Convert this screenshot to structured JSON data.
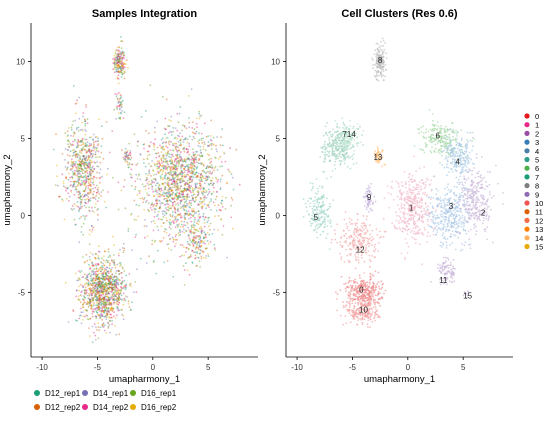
{
  "chart_data": [
    {
      "type": "scatter",
      "title": "Samples Integration",
      "xlabel": "umapharmony_1",
      "ylabel": "umapharmony_2",
      "xlim": [
        -11,
        9.5
      ],
      "ylim": [
        -9.2,
        12.5
      ],
      "xticks": [
        -10,
        -5,
        0,
        5
      ],
      "yticks": [
        -5,
        0,
        5,
        10
      ],
      "grid": false,
      "legend": {
        "placement": "bottom",
        "entries": [
          {
            "label": "D12_rep1",
            "color": "#1b9e77"
          },
          {
            "label": "D14_rep1",
            "color": "#7570b3"
          },
          {
            "label": "D16_rep1",
            "color": "#66a61e"
          },
          {
            "label": "D12_rep2",
            "color": "#d95f02"
          },
          {
            "label": "D14_rep2",
            "color": "#e7298a"
          },
          {
            "label": "D16_rep2",
            "color": "#e6ab02"
          }
        ]
      },
      "regions": [
        {
          "x": -3,
          "y": 10,
          "spread": [
            0.55,
            1.1
          ],
          "n": 170
        },
        {
          "x": -3,
          "y": 7.2,
          "spread": [
            0.4,
            0.8
          ],
          "n": 45
        },
        {
          "x": -6.3,
          "y": 3.0,
          "spread": [
            1.7,
            3.1
          ],
          "n": 650
        },
        {
          "x": -4.5,
          "y": -4.9,
          "spread": [
            2.1,
            2.2
          ],
          "n": 1050
        },
        {
          "x": -2.3,
          "y": 3.8,
          "spread": [
            0.45,
            0.55
          ],
          "n": 45
        },
        {
          "x": 2.5,
          "y": 2.0,
          "spread": [
            3.6,
            3.8
          ],
          "n": 1500
        },
        {
          "x": 4.2,
          "y": -1.8,
          "spread": [
            1.0,
            1.4
          ],
          "n": 120
        }
      ]
    },
    {
      "type": "scatter",
      "title": "Cell Clusters (Res 0.6)",
      "xlabel": "umapharmony_1",
      "ylabel": "umapharmony_2",
      "xlim": [
        -11,
        9.5
      ],
      "ylim": [
        -9.2,
        12.5
      ],
      "xticks": [
        -10,
        -5,
        0,
        5
      ],
      "yticks": [
        -5,
        0,
        5,
        10
      ],
      "grid": false,
      "legend": {
        "placement": "right",
        "entries": [
          {
            "label": "0",
            "color": "#e41a1c"
          },
          {
            "label": "1",
            "color": "#e7298a"
          },
          {
            "label": "2",
            "color": "#984ea3"
          },
          {
            "label": "3",
            "color": "#377eb8"
          },
          {
            "label": "4",
            "color": "#4a7fa8"
          },
          {
            "label": "5",
            "color": "#2e9e8c"
          },
          {
            "label": "6",
            "color": "#4daf4a"
          },
          {
            "label": "7",
            "color": "#1b9e77"
          },
          {
            "label": "8",
            "color": "#7f7f7f"
          },
          {
            "label": "9",
            "color": "#8e6bb3"
          },
          {
            "label": "10",
            "color": "#ef5350"
          },
          {
            "label": "11",
            "color": "#d95f02"
          },
          {
            "label": "12",
            "color": "#f46d43"
          },
          {
            "label": "13",
            "color": "#ff7f00"
          },
          {
            "label": "14",
            "color": "#fdae61"
          },
          {
            "label": "15",
            "color": "#e6ab02"
          }
        ]
      },
      "clusters": [
        {
          "id": "0",
          "x": -4.0,
          "y": -5.0,
          "spread": [
            1.6,
            1.0
          ],
          "n": 330,
          "color": "#f08e8e"
        },
        {
          "id": "10",
          "x": -4.0,
          "y": -6.3,
          "spread": [
            1.5,
            0.8
          ],
          "n": 200,
          "color": "#f3a3a3"
        },
        {
          "id": "12",
          "x": -4.5,
          "y": -1.6,
          "spread": [
            1.7,
            1.5
          ],
          "n": 230,
          "color": "#f2a9a9"
        },
        {
          "id": "1",
          "x": 0.4,
          "y": 0.6,
          "spread": [
            1.8,
            2.2
          ],
          "n": 380,
          "color": "#f1b7c7"
        },
        {
          "id": "3",
          "x": 3.8,
          "y": 0.0,
          "spread": [
            1.9,
            2.0
          ],
          "n": 340,
          "color": "#a9c8e6"
        },
        {
          "id": "2",
          "x": 6.2,
          "y": 0.9,
          "spread": [
            1.5,
            2.2
          ],
          "n": 280,
          "color": "#c9b6d8"
        },
        {
          "id": "6",
          "x": 3.0,
          "y": 5.0,
          "spread": [
            1.8,
            1.1
          ],
          "n": 230,
          "color": "#a8d8a8"
        },
        {
          "id": "4",
          "x": 4.6,
          "y": 3.7,
          "spread": [
            1.3,
            1.2
          ],
          "n": 200,
          "color": "#a8c9e4"
        },
        {
          "id": "7",
          "x": -6.3,
          "y": 4.5,
          "spread": [
            1.4,
            1.3
          ],
          "n": 260,
          "color": "#9fd3bf"
        },
        {
          "id": "14",
          "x": -5.3,
          "y": 5.2,
          "spread": [
            0.9,
            1.0
          ],
          "n": 100,
          "color": "#b7e2cd"
        },
        {
          "id": "5",
          "x": -8.0,
          "y": 0.3,
          "spread": [
            1.0,
            1.6
          ],
          "n": 180,
          "color": "#9fd5c8"
        },
        {
          "id": "8",
          "x": -2.5,
          "y": 10.0,
          "spread": [
            0.55,
            1.1
          ],
          "n": 170,
          "color": "#bdbdbd"
        },
        {
          "id": "13",
          "x": -2.6,
          "y": 3.9,
          "spread": [
            0.45,
            0.5
          ],
          "n": 50,
          "color": "#ffc078"
        },
        {
          "id": "9",
          "x": -3.5,
          "y": 1.0,
          "spread": [
            0.45,
            0.9
          ],
          "n": 60,
          "color": "#c3b1dc"
        },
        {
          "id": "11",
          "x": 3.5,
          "y": -3.6,
          "spread": [
            0.9,
            0.9
          ],
          "n": 90,
          "color": "#c8b0d8"
        },
        {
          "id": "15",
          "x": 5.3,
          "y": -5.2,
          "spread": [
            0.3,
            0.3
          ],
          "n": 10,
          "color": "#c8b0d8"
        }
      ],
      "cluster_labels": [
        {
          "text": "8",
          "x": -2.5,
          "y": 10.1
        },
        {
          "text": "714",
          "x": -5.3,
          "y": 5.3
        },
        {
          "text": "6",
          "x": 2.7,
          "y": 5.2
        },
        {
          "text": "13",
          "x": -2.7,
          "y": 3.8
        },
        {
          "text": "4",
          "x": 4.5,
          "y": 3.5
        },
        {
          "text": "9",
          "x": -3.5,
          "y": 1.2
        },
        {
          "text": "2",
          "x": 6.8,
          "y": 0.2
        },
        {
          "text": "5",
          "x": -8.3,
          "y": -0.1
        },
        {
          "text": "1",
          "x": 0.3,
          "y": 0.5
        },
        {
          "text": "3",
          "x": 3.9,
          "y": 0.6
        },
        {
          "text": "12",
          "x": -4.3,
          "y": -2.2
        },
        {
          "text": "11",
          "x": 3.2,
          "y": -4.2
        },
        {
          "text": "0",
          "x": -4.2,
          "y": -4.8
        },
        {
          "text": "15",
          "x": 5.4,
          "y": -5.2
        },
        {
          "text": "10",
          "x": -4.0,
          "y": -6.1
        }
      ]
    }
  ]
}
